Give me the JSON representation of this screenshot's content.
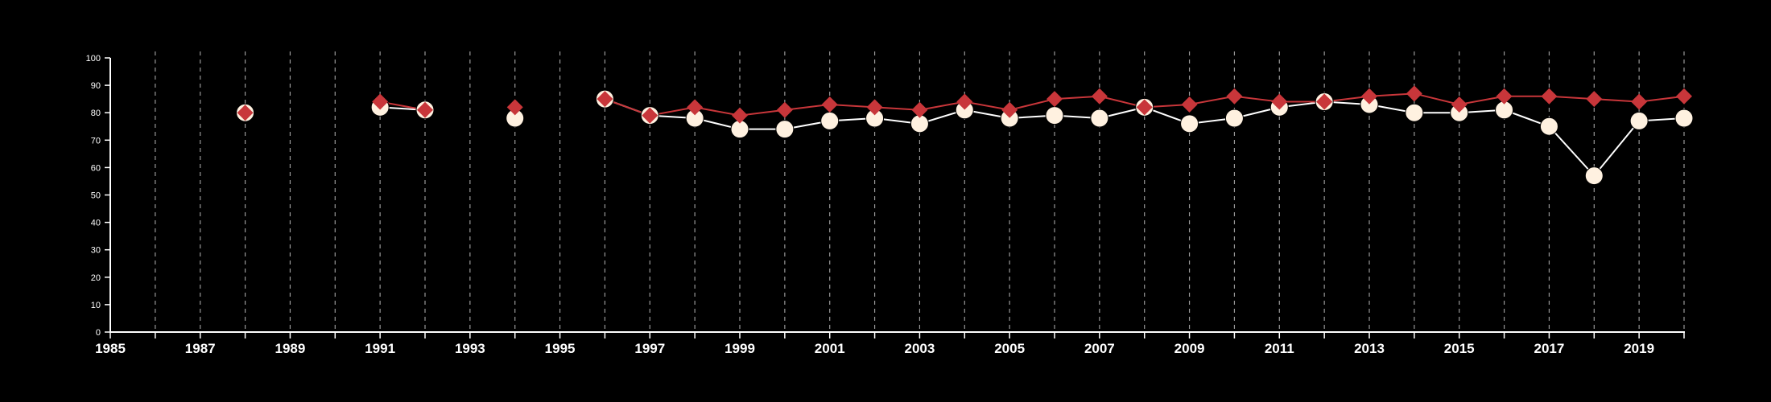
{
  "chart_data": {
    "type": "line",
    "title": "",
    "xlabel": "",
    "ylabel": "",
    "xlim": [
      1985,
      2020
    ],
    "ylim": [
      0,
      100
    ],
    "x_ticks": [
      "1985",
      "1987",
      "1989",
      "1991",
      "1993",
      "1995",
      "1997",
      "1999",
      "2001",
      "2003",
      "2005",
      "2007",
      "2009",
      "2011",
      "2013",
      "2015",
      "2017",
      "2019"
    ],
    "y_ticks": [
      "0",
      "10",
      "20",
      "30",
      "40",
      "50",
      "60",
      "70",
      "80",
      "90",
      "100"
    ],
    "grid": "vertical dashed lines at every year",
    "x": [
      1988,
      1991,
      1992,
      1994,
      1996,
      1997,
      1998,
      1999,
      2000,
      2001,
      2002,
      2003,
      2004,
      2005,
      2006,
      2007,
      2008,
      2009,
      2010,
      2011,
      2012,
      2013,
      2014,
      2015,
      2016,
      2017,
      2018,
      2019,
      2020
    ],
    "series": [
      {
        "marker": "circle",
        "color": "#fff1e0",
        "values": [
          80,
          82,
          81,
          78,
          85,
          79,
          78,
          74,
          74,
          77,
          78,
          76,
          81,
          78,
          79,
          78,
          82,
          76,
          78,
          82,
          84,
          83,
          80,
          80,
          81,
          75,
          57,
          77,
          78
        ]
      },
      {
        "marker": "diamond",
        "color": "#c8363a",
        "values": [
          80,
          84,
          81,
          82,
          85,
          79,
          82,
          79,
          81,
          83,
          82,
          81,
          84,
          81,
          85,
          86,
          82,
          83,
          86,
          84,
          84,
          86,
          87,
          83,
          86,
          86,
          85,
          84,
          86
        ]
      }
    ]
  }
}
